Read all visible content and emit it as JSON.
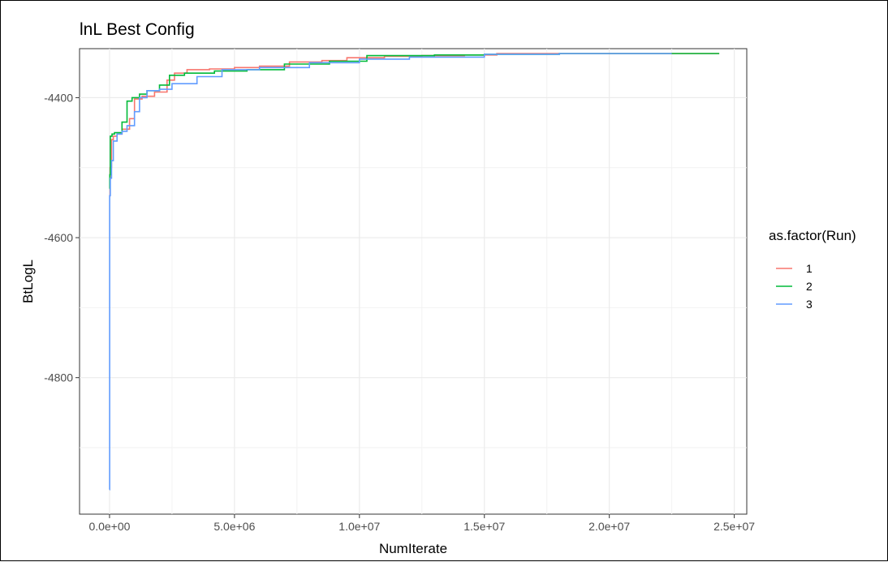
{
  "chart_data": {
    "type": "line",
    "title": "lnL Best Config",
    "xlabel": "NumIterate",
    "ylabel": "BtLogL",
    "xlim": [
      -1200000,
      25500000
    ],
    "ylim": [
      -4995,
      -4330
    ],
    "x_ticks": [
      0,
      5000000,
      10000000,
      15000000,
      20000000,
      25000000
    ],
    "x_tick_labels": [
      "0.0e+00",
      "5.0e+06",
      "1.0e+07",
      "1.5e+07",
      "2.0e+07",
      "2.5e+07"
    ],
    "y_ticks": [
      -4400,
      -4600,
      -4800
    ],
    "y_tick_labels": [
      "-4400",
      "-4600",
      "-4800"
    ],
    "grid": true,
    "legend": {
      "title": "as.factor(Run)",
      "placement": "right"
    },
    "series": [
      {
        "name": "1",
        "color": "#F8766D",
        "x": [
          0,
          20000,
          80000,
          150000,
          300000,
          500000,
          800000,
          1000000,
          1300000,
          1800000,
          2300000,
          2600000,
          3100000,
          4000000,
          5000000,
          6000000,
          7200000,
          8500000,
          9500000,
          11000000,
          12500000,
          14200000,
          15500000,
          18000000,
          20000000,
          22000000,
          24400000
        ],
        "y": [
          -4540,
          -4500,
          -4460,
          -4455,
          -4452,
          -4445,
          -4430,
          -4402,
          -4398,
          -4392,
          -4375,
          -4365,
          -4360,
          -4359,
          -4357,
          -4355,
          -4349,
          -4347,
          -4343,
          -4341,
          -4340,
          -4339,
          -4337,
          -4337,
          -4337,
          -4337,
          -4337
        ]
      },
      {
        "name": "2",
        "color": "#00BA38",
        "x": [
          0,
          10000,
          30000,
          100000,
          200000,
          500000,
          700000,
          900000,
          1200000,
          1500000,
          2000000,
          2400000,
          3000000,
          4200000,
          5500000,
          7000000,
          8800000,
          10300000,
          13000000,
          15000000,
          18000000,
          22500000,
          24400000
        ],
        "y": [
          -4530,
          -4510,
          -4455,
          -4452,
          -4450,
          -4435,
          -4405,
          -4400,
          -4395,
          -4390,
          -4382,
          -4368,
          -4365,
          -4362,
          -4360,
          -4352,
          -4348,
          -4340,
          -4339,
          -4338,
          -4337,
          -4337,
          -4337
        ]
      },
      {
        "name": "3",
        "color": "#619CFF",
        "x": [
          0,
          5000,
          30000,
          80000,
          150000,
          300000,
          500000,
          700000,
          1000000,
          1200000,
          1500000,
          2000000,
          2500000,
          3500000,
          4500000,
          6000000,
          8000000,
          10000000,
          12000000,
          15000000,
          18000000,
          22500000
        ],
        "y": [
          -4960,
          -4540,
          -4515,
          -4490,
          -4462,
          -4452,
          -4448,
          -4440,
          -4420,
          -4400,
          -4390,
          -4388,
          -4380,
          -4370,
          -4360,
          -4357,
          -4350,
          -4345,
          -4342,
          -4338,
          -4337,
          -4337
        ]
      }
    ]
  }
}
